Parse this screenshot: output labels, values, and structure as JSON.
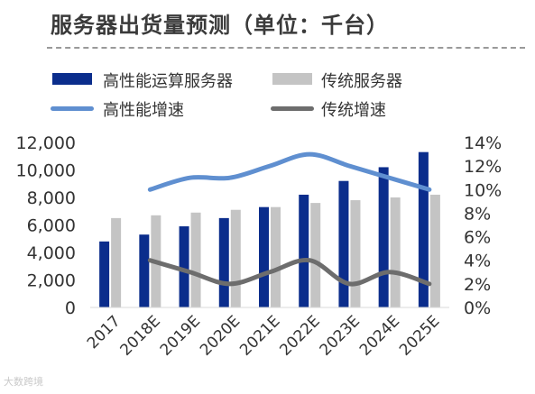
{
  "title": "服务器出货量预测（单位：千台）",
  "watermark": "大数跨境",
  "colors": {
    "hp_bar": "#0b2d8c",
    "trad_bar": "#c4c4c4",
    "hp_line": "#5f8fd0",
    "trad_line": "#6d6d6d",
    "axis_text": "#333333",
    "rule": "#9a9a9a"
  },
  "legend": {
    "hp_bar": "高性能运算服务器",
    "trad_bar": "传统服务器",
    "hp_line": "高性能增速",
    "trad_line": "传统增速"
  },
  "chart_data": {
    "type": "bar",
    "categories": [
      "2017",
      "2018E",
      "2019E",
      "2020E",
      "2021E",
      "2022E",
      "2023E",
      "2024E",
      "2025E"
    ],
    "series": [
      {
        "name": "高性能运算服务器",
        "type": "bar",
        "axis": "left",
        "values": [
          4800,
          5300,
          5900,
          6500,
          7300,
          8200,
          9200,
          10200,
          11300
        ]
      },
      {
        "name": "传统服务器",
        "type": "bar",
        "axis": "left",
        "values": [
          6500,
          6700,
          6900,
          7100,
          7300,
          7600,
          7800,
          8000,
          8200
        ]
      },
      {
        "name": "高性能增速",
        "type": "line",
        "axis": "right",
        "x": [
          "2018E",
          "2019E",
          "2020E",
          "2021E",
          "2022E",
          "2023E",
          "2024E",
          "2025E"
        ],
        "values": [
          0.1,
          0.11,
          0.11,
          0.12,
          0.13,
          0.12,
          0.11,
          0.1
        ]
      },
      {
        "name": "传统增速",
        "type": "line",
        "axis": "right",
        "x": [
          "2018E",
          "2019E",
          "2020E",
          "2021E",
          "2022E",
          "2023E",
          "2024E",
          "2025E"
        ],
        "values": [
          0.04,
          0.03,
          0.02,
          0.03,
          0.04,
          0.02,
          0.03,
          0.02
        ]
      }
    ],
    "y_left": {
      "ylim": [
        0,
        12000
      ],
      "ticks": [
        "0",
        "2,000",
        "4,000",
        "6,000",
        "8,000",
        "10,000",
        "12,000"
      ]
    },
    "y_right": {
      "ylim": [
        0,
        0.14
      ],
      "ticks": [
        "0%",
        "2%",
        "4%",
        "6%",
        "8%",
        "10%",
        "12%",
        "14%"
      ]
    },
    "legend_position": "top",
    "grid": false
  }
}
